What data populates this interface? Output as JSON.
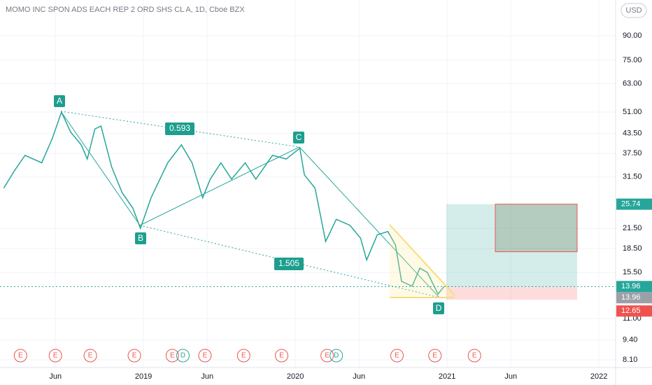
{
  "chart_data": {
    "type": "line",
    "title": "MOMO INC SPON ADS EACH REP 2 ORD SHS CL A, 1D, Cboe BZX",
    "currency": "USD",
    "log_scale": true,
    "grid": true,
    "color": "#26a69a",
    "x": [
      2018.08,
      2018.15,
      2018.22,
      2018.33,
      2018.4,
      2018.46,
      2018.52,
      2018.59,
      2018.63,
      2018.68,
      2018.72,
      2018.79,
      2018.86,
      2018.93,
      2018.98,
      2019.05,
      2019.16,
      2019.25,
      2019.32,
      2019.39,
      2019.44,
      2019.51,
      2019.58,
      2019.67,
      2019.74,
      2019.85,
      2019.94,
      2020.03,
      2020.06,
      2020.13,
      2020.2,
      2020.27,
      2020.36,
      2020.43,
      2020.47,
      2020.54,
      2020.61,
      2020.66,
      2020.7,
      2020.77,
      2020.82,
      2020.87,
      2020.94,
      2020.98
    ],
    "values": [
      29,
      33,
      37,
      35,
      42,
      51,
      44,
      40,
      36,
      45,
      46,
      34,
      28,
      25,
      21.5,
      27,
      35,
      40,
      35,
      27,
      31,
      35,
      31,
      35,
      31,
      37,
      36,
      39,
      32,
      29,
      19.5,
      23,
      22,
      20,
      17,
      20.5,
      21,
      19,
      14.5,
      14,
      16,
      15.5,
      13.2,
      13.96
    ],
    "xlim": [
      2018.055,
      2022.11
    ],
    "xticks": [
      {
        "value": 2018.42,
        "label": "Jun"
      },
      2019,
      {
        "value": 2019.42,
        "label": "Jun"
      },
      2020,
      {
        "value": 2020.42,
        "label": "Jun"
      },
      2021,
      {
        "value": 2021.42,
        "label": "Jun"
      },
      2022
    ],
    "ylim": [
      7.65,
      117.3
    ],
    "yticks": [
      {
        "value": 8.1,
        "label": "8.10"
      },
      {
        "value": 9.4,
        "label": "9.40"
      },
      {
        "value": 11,
        "label": "11.00"
      },
      {
        "value": 15.5,
        "label": "15.50"
      },
      {
        "value": 18.5,
        "label": "18.50"
      },
      {
        "value": 21.5,
        "label": "21.50"
      },
      {
        "value": 31.5,
        "label": "31.50"
      },
      {
        "value": 37.5,
        "label": "37.50"
      },
      {
        "value": 43.5,
        "label": "43.50"
      },
      {
        "value": 51,
        "label": "51.00"
      },
      {
        "value": 63,
        "label": "63.00"
      },
      {
        "value": 75,
        "label": "75.00"
      },
      {
        "value": 90,
        "label": "90.00"
      }
    ],
    "last_price": 13.96,
    "position": {
      "target": 25.74,
      "entry": 13.96,
      "stop": 12.65
    },
    "annotations": [
      "A",
      "B",
      "C",
      "D",
      "0.593",
      "1.505"
    ],
    "events": [
      {
        "x": 2018.19,
        "label": "E"
      },
      {
        "x": 2018.42,
        "label": "E"
      },
      {
        "x": 2018.65,
        "label": "E"
      },
      {
        "x": 2018.94,
        "label": "E"
      },
      {
        "x": 2019.19,
        "label": "E"
      },
      {
        "x": 2019.26,
        "label": "D"
      },
      {
        "x": 2019.405,
        "label": "E"
      },
      {
        "x": 2019.66,
        "label": "E"
      },
      {
        "x": 2019.91,
        "label": "E"
      },
      {
        "x": 2020.21,
        "label": "E"
      },
      {
        "x": 2020.27,
        "label": "D"
      },
      {
        "x": 2020.67,
        "label": "E"
      },
      {
        "x": 2020.92,
        "label": "E"
      },
      {
        "x": 2021.18,
        "label": "E"
      }
    ]
  }
}
